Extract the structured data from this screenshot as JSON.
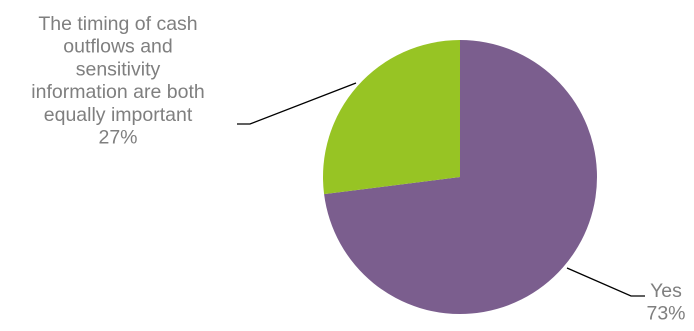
{
  "chart_data": {
    "type": "pie",
    "title": "",
    "slices": [
      {
        "label_lines": [
          "Yes"
        ],
        "value": 73,
        "percent_label": "73%",
        "color": "#7B5E8E"
      },
      {
        "label_lines": [
          "The timing of cash",
          "outflows and",
          "sensitivity",
          "information are both",
          "equally important"
        ],
        "value": 27,
        "percent_label": "27%",
        "color": "#97C424"
      }
    ],
    "label_color": "#7F7F7F",
    "leader_line_color": "#000000",
    "start_angle_deg": 0,
    "direction": "clockwise"
  }
}
